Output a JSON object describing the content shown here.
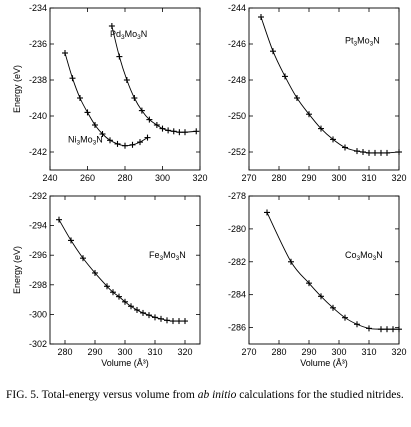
{
  "ylabel": "Energy (eV)",
  "xlabel": "Volume (Å³)",
  "caption": {
    "lead": "FIG. 5. Total-energy versus volume from ",
    "emph": "ab initio",
    "tail": " calculations for the studied nitrides."
  },
  "chart_data": [
    {
      "type": "line",
      "panel": "top-left",
      "xlim": [
        240,
        320
      ],
      "ylim": [
        -243,
        -234
      ],
      "xticks": [
        240,
        260,
        280,
        300,
        320
      ],
      "yticks": [
        -234,
        -236,
        -238,
        -240,
        -242
      ],
      "xticklabels": [
        "240",
        "260",
        "280",
        "300",
        "320"
      ],
      "yticklabels": [
        "-234",
        "-236",
        "-238",
        "-240",
        "-242"
      ],
      "ylabel": "Energy (eV)",
      "xlabel": "",
      "series": [
        {
          "name": "Ni3Mo3N",
          "label_base": "Ni",
          "label_sub": "3",
          "label_mid": "Mo",
          "label_sub2": "3",
          "label_end": "N",
          "x": [
            248,
            252,
            256,
            260,
            264,
            268,
            272,
            276,
            280,
            284,
            288,
            292
          ],
          "y": [
            -236.5,
            -237.9,
            -239.0,
            -239.8,
            -240.5,
            -241.0,
            -241.35,
            -241.55,
            -241.65,
            -241.6,
            -241.45,
            -241.2
          ]
        },
        {
          "name": "Pd3Mo3N",
          "label_base": "Pd",
          "label_sub": "3",
          "label_mid": "Mo",
          "label_sub2": "3",
          "label_end": "N",
          "x": [
            273,
            277,
            281,
            285,
            289,
            293,
            297,
            300,
            303,
            306,
            309,
            312,
            318
          ],
          "y": [
            -235.0,
            -236.7,
            -238.0,
            -239.0,
            -239.7,
            -240.2,
            -240.5,
            -240.7,
            -240.8,
            -240.85,
            -240.9,
            -240.9,
            -240.85
          ]
        }
      ]
    },
    {
      "type": "line",
      "panel": "top-right",
      "xlim": [
        270,
        320
      ],
      "ylim": [
        -253,
        -244
      ],
      "xticks": [
        270,
        280,
        290,
        300,
        310,
        320
      ],
      "yticks": [
        -244,
        -246,
        -248,
        -250,
        -252
      ],
      "xticklabels": [
        "270",
        "280",
        "290",
        "300",
        "310",
        "320"
      ],
      "yticklabels": [
        "-244",
        "-246",
        "-248",
        "-250",
        "-252"
      ],
      "ylabel": "",
      "xlabel": "",
      "series": [
        {
          "name": "Pt3Mo3N",
          "label_base": "Pt",
          "label_sub": "3",
          "label_mid": "Mo",
          "label_sub2": "3",
          "label_end": "N",
          "x": [
            274,
            278,
            282,
            286,
            290,
            294,
            298,
            302,
            306,
            308,
            310,
            312,
            314,
            316,
            320
          ],
          "y": [
            -244.5,
            -246.4,
            -247.8,
            -249.0,
            -249.9,
            -250.7,
            -251.3,
            -251.75,
            -251.95,
            -252.0,
            -252.05,
            -252.05,
            -252.05,
            -252.05,
            -252.0
          ]
        }
      ]
    },
    {
      "type": "line",
      "panel": "bottom-left",
      "xlim": [
        275,
        325
      ],
      "ylim": [
        -302,
        -292
      ],
      "xticks": [
        280,
        290,
        300,
        310,
        320
      ],
      "yticks": [
        -292,
        -294,
        -296,
        -298,
        -300,
        -302
      ],
      "xticklabels": [
        "280",
        "290",
        "300",
        "310",
        "320"
      ],
      "yticklabels": [
        "-292",
        "-294",
        "-296",
        "-298",
        "-300",
        "-302"
      ],
      "ylabel": "Energy (eV)",
      "xlabel": "Volume (Å³)",
      "series": [
        {
          "name": "Fe3Mo3N",
          "label_base": "Fe",
          "label_sub": "3",
          "label_mid": "Mo",
          "label_sub2": "3",
          "label_end": "N",
          "x": [
            278,
            282,
            286,
            290,
            294,
            296,
            298,
            300,
            302,
            304,
            306,
            308,
            310,
            312,
            314,
            316,
            318,
            320
          ],
          "y": [
            -293.6,
            -295.0,
            -296.2,
            -297.2,
            -298.1,
            -298.5,
            -298.8,
            -299.15,
            -299.45,
            -299.7,
            -299.9,
            -300.05,
            -300.2,
            -300.3,
            -300.4,
            -300.45,
            -300.45,
            -300.45
          ]
        }
      ]
    },
    {
      "type": "line",
      "panel": "bottom-right",
      "xlim": [
        270,
        320
      ],
      "ylim": [
        -287,
        -278
      ],
      "xticks": [
        270,
        280,
        290,
        300,
        310,
        320
      ],
      "yticks": [
        -278,
        -280,
        -282,
        -284,
        -286
      ],
      "xticklabels": [
        "270",
        "280",
        "290",
        "300",
        "310",
        "320"
      ],
      "yticklabels": [
        "-278",
        "-280",
        "-282",
        "-284",
        "-286"
      ],
      "ylabel": "",
      "xlabel": "Volume (Å³)",
      "series": [
        {
          "name": "Co3Mo3N",
          "label_base": "Co",
          "label_sub": "3",
          "label_mid": "Mo",
          "label_sub2": "3",
          "label_end": "N",
          "x": [
            276,
            284,
            290,
            294,
            298,
            302,
            306,
            310,
            314,
            316,
            318,
            320
          ],
          "y": [
            -279.0,
            -282.0,
            -283.3,
            -284.1,
            -284.8,
            -285.4,
            -285.8,
            -286.05,
            -286.1,
            -286.1,
            -286.1,
            -286.1
          ]
        }
      ]
    }
  ]
}
